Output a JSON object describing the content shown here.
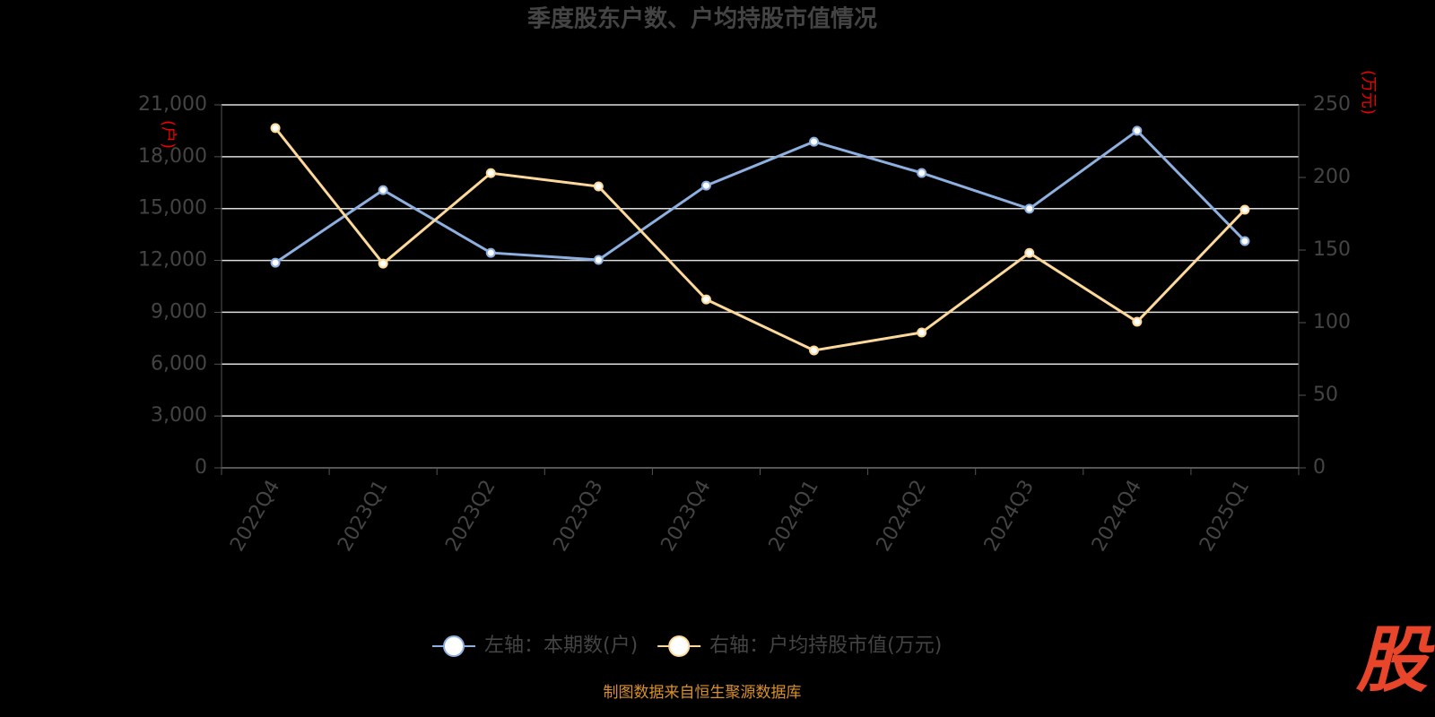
{
  "chart_data": {
    "type": "line",
    "title": "季度股东户数、户均持股市值情况",
    "y_label": "(户)",
    "y2_label": "(万元)",
    "categories": [
      "2022Q4",
      "2023Q1",
      "2023Q2",
      "2023Q3",
      "2023Q4",
      "2024Q1",
      "2024Q2",
      "2024Q3",
      "2024Q4",
      "2025Q1"
    ],
    "series": [
      {
        "name": "左轴：本期数(户)",
        "color": "#8eb0e0",
        "values": [
          11870,
          16070,
          12440,
          12030,
          16330,
          18870,
          17060,
          14990,
          19500,
          13120
        ]
      },
      {
        "name": "右轴：户均持股市值(万元)",
        "color": "#fcd99a",
        "axis": "y2",
        "values": [
          234,
          140.7,
          203,
          193.8,
          116,
          80.9,
          93.2,
          148,
          100.6,
          177.8
        ]
      }
    ],
    "ylim": [
      0,
      21000
    ],
    "yticks": [
      0,
      {
        "value": 3000,
        "label": "3,000"
      },
      {
        "value": 6000,
        "label": "6,000"
      },
      {
        "value": 9000,
        "label": "9,000"
      },
      {
        "value": 12000,
        "label": "12,000"
      },
      {
        "value": 15000,
        "label": "15,000"
      },
      {
        "value": 18000,
        "label": "18,000"
      },
      {
        "value": 21000,
        "label": "21,000"
      }
    ],
    "y2lim": [
      0,
      250
    ],
    "y2ticks": [
      0,
      50,
      100,
      150,
      200,
      250
    ],
    "grid": true,
    "legend": "bottom",
    "source": "制图数据来自恒生聚源数据库",
    "logo": "股"
  }
}
